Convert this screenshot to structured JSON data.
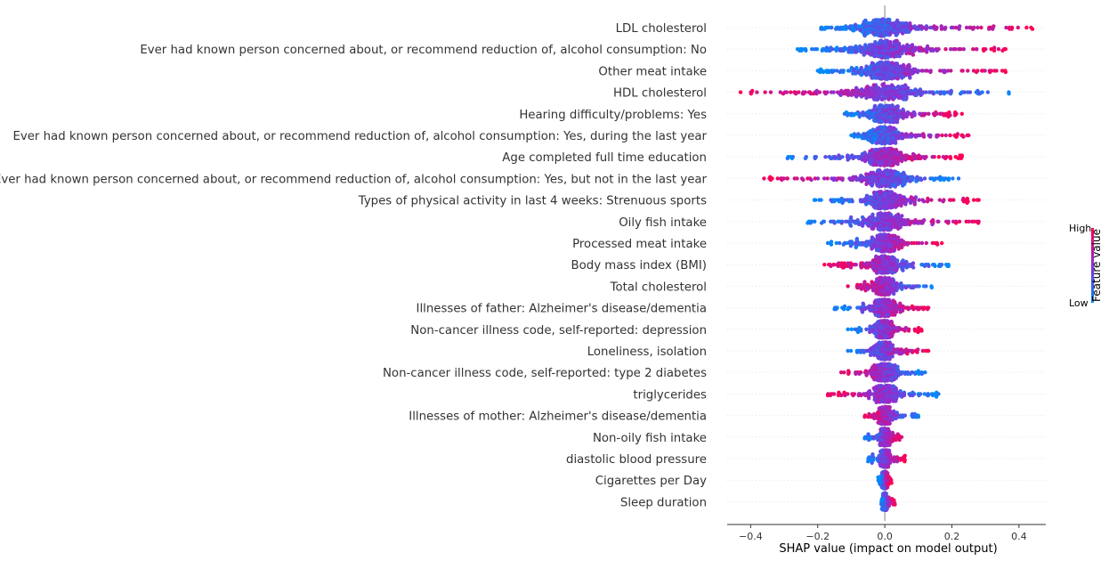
{
  "chart_data": {
    "type": "scatter",
    "subtype": "shap-beeswarm",
    "title": "",
    "xlabel": "SHAP value (impact on model output)",
    "ylabel": "",
    "xlim": [
      -0.47,
      0.48
    ],
    "xticks": [
      -0.4,
      -0.2,
      0.0,
      0.2,
      0.4
    ],
    "xtick_labels": [
      "−0.4",
      "−0.2",
      "0.0",
      "0.2",
      "0.4"
    ],
    "grid": false,
    "colorbar": {
      "title": "Feature value",
      "high_label": "High",
      "low_label": "Low",
      "low_color": "#008afb",
      "high_color": "#ff0052"
    },
    "zero_line": {
      "x": 0,
      "color": "#999999"
    },
    "features": [
      {
        "name": "LDL cholesterol",
        "neg_min": -0.19,
        "pos_max": 0.44,
        "low_side": "neg",
        "density": 1.0
      },
      {
        "name": "Ever had known person concerned about, or recommend reduction of, alcohol consumption: No",
        "neg_min": -0.26,
        "pos_max": 0.36,
        "low_side": "neg",
        "density": 1.0
      },
      {
        "name": "Other meat intake",
        "neg_min": -0.2,
        "pos_max": 0.36,
        "low_side": "neg",
        "density": 0.95
      },
      {
        "name": "HDL cholesterol",
        "neg_min": -0.43,
        "pos_max": 0.37,
        "low_side": "pos",
        "density": 0.9
      },
      {
        "name": "Hearing difficulty/problems: Yes",
        "neg_min": -0.12,
        "pos_max": 0.23,
        "low_side": "neg",
        "density": 0.7
      },
      {
        "name": "Ever had known person concerned about, or recommend reduction of, alcohol consumption: Yes, during the last year",
        "neg_min": -0.1,
        "pos_max": 0.25,
        "low_side": "neg",
        "density": 0.65
      },
      {
        "name": "Age completed full time education",
        "neg_min": -0.29,
        "pos_max": 0.23,
        "low_side": "neg",
        "density": 0.85
      },
      {
        "name": "Ever had known person concerned about, or recommend reduction of, alcohol consumption: Yes, but not in the last year",
        "neg_min": -0.36,
        "pos_max": 0.22,
        "low_side": "pos",
        "density": 0.8
      },
      {
        "name": "Types of physical activity in last 4 weeks: Strenuous sports",
        "neg_min": -0.21,
        "pos_max": 0.28,
        "low_side": "neg",
        "density": 0.8
      },
      {
        "name": "Oily fish intake",
        "neg_min": -0.23,
        "pos_max": 0.28,
        "low_side": "neg",
        "density": 0.8
      },
      {
        "name": "Processed meat intake",
        "neg_min": -0.17,
        "pos_max": 0.17,
        "low_side": "neg",
        "density": 0.7
      },
      {
        "name": "Body mass index (BMI)",
        "neg_min": -0.18,
        "pos_max": 0.19,
        "low_side": "pos",
        "density": 0.7
      },
      {
        "name": "Total cholesterol",
        "neg_min": -0.11,
        "pos_max": 0.14,
        "low_side": "pos",
        "density": 0.6
      },
      {
        "name": "Illnesses of father: Alzheimer's disease/dementia",
        "neg_min": -0.15,
        "pos_max": 0.13,
        "low_side": "neg",
        "density": 0.6
      },
      {
        "name": "Non-cancer illness code, self-reported: depression",
        "neg_min": -0.11,
        "pos_max": 0.11,
        "low_side": "neg",
        "density": 0.55
      },
      {
        "name": "Loneliness, isolation",
        "neg_min": -0.11,
        "pos_max": 0.13,
        "low_side": "neg",
        "density": 0.55
      },
      {
        "name": "Non-cancer illness code, self-reported: type 2 diabetes",
        "neg_min": -0.13,
        "pos_max": 0.12,
        "low_side": "pos",
        "density": 0.55
      },
      {
        "name": "triglycerides",
        "neg_min": -0.17,
        "pos_max": 0.16,
        "low_side": "pos",
        "density": 0.55
      },
      {
        "name": "Illnesses of mother: Alzheimer's disease/dementia",
        "neg_min": -0.06,
        "pos_max": 0.1,
        "low_side": "pos",
        "density": 0.45
      },
      {
        "name": "Non-oily fish intake",
        "neg_min": -0.06,
        "pos_max": 0.05,
        "low_side": "neg",
        "density": 0.35
      },
      {
        "name": "diastolic blood pressure",
        "neg_min": -0.05,
        "pos_max": 0.06,
        "low_side": "neg",
        "density": 0.3
      },
      {
        "name": "Cigarettes per Day",
        "neg_min": -0.02,
        "pos_max": 0.02,
        "low_side": "neg",
        "density": 0.25
      },
      {
        "name": "Sleep duration",
        "neg_min": -0.01,
        "pos_max": 0.03,
        "low_side": "neg",
        "density": 0.22
      }
    ]
  }
}
